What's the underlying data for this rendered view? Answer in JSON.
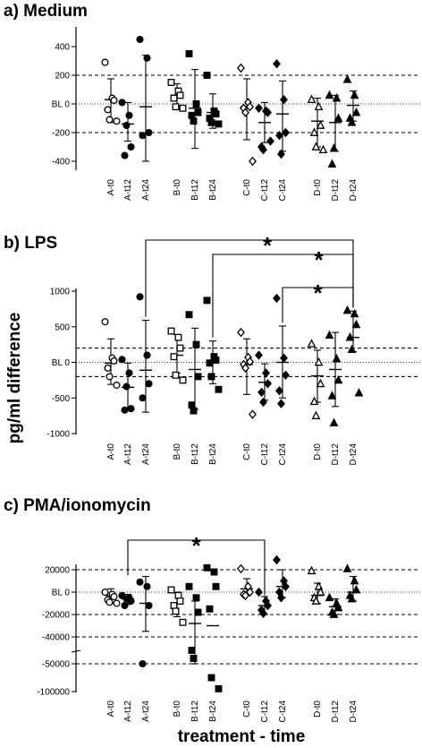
{
  "figure": {
    "y_axis_label": "pg/ml difference",
    "x_axis_label": "treatment - time"
  },
  "chart_data": [
    {
      "type": "scatter",
      "title": "a) Medium",
      "categories": [
        "A-t0",
        "A-t12",
        "A-t24",
        "B-t0",
        "B-t12",
        "B-t24",
        "C-t0",
        "C-t12",
        "C-t24",
        "D-t0",
        "D-t12",
        "D-t24"
      ],
      "yticks": [
        {
          "value": 400,
          "label": "400"
        },
        {
          "value": 200,
          "label": "200"
        },
        {
          "value": 0,
          "label": "BL 0"
        },
        {
          "value": -200,
          "label": "-200"
        },
        {
          "value": -400,
          "label": "-400"
        }
      ],
      "ylim": [
        -500,
        460
      ],
      "reference_lines": {
        "dashed": [
          200,
          -200
        ],
        "dotted": [
          0
        ]
      },
      "groups": [
        {
          "category": "A-t0",
          "marker": "circle-open",
          "mean": 30,
          "ci": [
            -130,
            175
          ],
          "points": [
            290,
            40,
            25,
            -40,
            -110,
            -120
          ]
        },
        {
          "category": "A-t12",
          "marker": "circle-filled",
          "mean": -140,
          "ci": [
            -260,
            10
          ],
          "points": [
            10,
            -80,
            -300,
            -360,
            -150
          ]
        },
        {
          "category": "A-t24",
          "marker": "circle-filled",
          "mean": -20,
          "ci": [
            -400,
            340
          ],
          "points": [
            450,
            320,
            -200,
            -220
          ]
        },
        {
          "category": "B-t0",
          "marker": "square-open",
          "mean": 60,
          "ci": [
            -20,
            140
          ],
          "points": [
            150,
            90,
            60,
            40,
            -20,
            -30
          ]
        },
        {
          "category": "B-t12",
          "marker": "square-filled",
          "mean": -30,
          "ci": [
            -310,
            240
          ],
          "points": [
            350,
            0,
            -60,
            -80,
            -120
          ]
        },
        {
          "category": "B-t24",
          "marker": "square-filled",
          "mean": -60,
          "ci": [
            -170,
            70
          ],
          "points": [
            200,
            -50,
            -70,
            -100,
            -130,
            -140
          ]
        },
        {
          "category": "C-t0",
          "marker": "diamond-open",
          "mean": -20,
          "ci": [
            -250,
            175
          ],
          "points": [
            250,
            10,
            -20,
            -30,
            -60,
            -400
          ]
        },
        {
          "category": "C-t12",
          "marker": "diamond-filled",
          "mean": -130,
          "ci": [
            -270,
            10
          ],
          "points": [
            -30,
            -50,
            -60,
            -300,
            -320,
            -260
          ]
        },
        {
          "category": "C-t24",
          "marker": "diamond-filled",
          "mean": -70,
          "ci": [
            -330,
            160
          ],
          "points": [
            280,
            30,
            -200,
            -220,
            -350
          ]
        },
        {
          "category": "D-t0",
          "marker": "triangle-open",
          "mean": -120,
          "ci": [
            -300,
            40
          ],
          "points": [
            30,
            -20,
            -150,
            -200,
            -300,
            -320
          ]
        },
        {
          "category": "D-t12",
          "marker": "triangle-filled",
          "mean": -130,
          "ci": [
            -330,
            60
          ],
          "points": [
            60,
            40,
            -100,
            -420,
            -310
          ]
        },
        {
          "category": "D-t24",
          "marker": "triangle-filled",
          "mean": -10,
          "ci": [
            -120,
            90
          ],
          "points": [
            170,
            60,
            -60,
            -100,
            -130
          ]
        }
      ],
      "significance": []
    },
    {
      "type": "scatter",
      "title": "b) LPS",
      "categories": [
        "A-t0",
        "A-t12",
        "A-t24",
        "B-t0",
        "B-t12",
        "B-t24",
        "C-t0",
        "C-t12",
        "C-t24",
        "D-t0",
        "D-t12",
        "D-t24"
      ],
      "yticks": [
        {
          "value": 1000,
          "label": "1000"
        },
        {
          "value": 500,
          "label": "500"
        },
        {
          "value": 0,
          "label": "BL 0"
        },
        {
          "value": -500,
          "label": "-500"
        },
        {
          "value": -1000,
          "label": "-1000"
        }
      ],
      "ylim": [
        -1000,
        1020
      ],
      "reference_lines": {
        "dashed": [
          200,
          -200
        ],
        "dotted": [
          0
        ]
      },
      "groups": [
        {
          "category": "A-t0",
          "marker": "circle-open",
          "mean": -10,
          "ci": [
            -310,
            330
          ],
          "points": [
            570,
            60,
            20,
            -80,
            -200,
            -320
          ]
        },
        {
          "category": "A-t12",
          "marker": "circle-filled",
          "mean": -350,
          "ci": [
            -660,
            -10
          ],
          "points": [
            40,
            -150,
            -650,
            -670,
            -340
          ]
        },
        {
          "category": "A-t24",
          "marker": "circle-filled",
          "mean": -110,
          "ci": [
            -700,
            590
          ],
          "points": [
            920,
            100,
            -300,
            -500
          ]
        },
        {
          "category": "B-t0",
          "marker": "square-open",
          "mean": 100,
          "ci": [
            -150,
            390
          ],
          "points": [
            440,
            350,
            200,
            80,
            -180,
            -250
          ]
        },
        {
          "category": "B-t12",
          "marker": "square-filled",
          "mean": -100,
          "ci": [
            -660,
            480
          ],
          "points": [
            670,
            250,
            -200,
            -600,
            -680
          ]
        },
        {
          "category": "B-t24",
          "marker": "square-filled",
          "mean": 20,
          "ci": [
            -300,
            300
          ],
          "points": [
            870,
            80,
            30,
            -10,
            -200,
            -380
          ]
        },
        {
          "category": "C-t0",
          "marker": "diamond-open",
          "mean": -30,
          "ci": [
            -450,
            330
          ],
          "points": [
            420,
            70,
            10,
            -30,
            -80,
            -730
          ]
        },
        {
          "category": "C-t12",
          "marker": "diamond-filled",
          "mean": -280,
          "ci": [
            -530,
            -20
          ],
          "points": [
            100,
            -150,
            -300,
            -420,
            -560
          ]
        },
        {
          "category": "C-t24",
          "marker": "diamond-filled",
          "mean": 0,
          "ci": [
            -500,
            510
          ],
          "points": [
            900,
            60,
            -180,
            -400,
            -580
          ]
        },
        {
          "category": "D-t0",
          "marker": "triangle-open",
          "mean": -190,
          "ci": [
            -560,
            170
          ],
          "points": [
            260,
            0,
            -300,
            -550,
            -750
          ]
        },
        {
          "category": "D-t12",
          "marker": "triangle-filled",
          "mean": -100,
          "ci": [
            -620,
            420
          ],
          "points": [
            380,
            50,
            -250,
            -470,
            -850
          ]
        },
        {
          "category": "D-t24",
          "marker": "triangle-filled",
          "mean": 350,
          "ci": [
            150,
            720
          ],
          "points": [
            730,
            680,
            530,
            350,
            180,
            -430
          ]
        }
      ],
      "significance": [
        {
          "from": "A-t24",
          "to": "D-t24",
          "label": "*"
        },
        {
          "from": "B-t24",
          "to": "D-t24",
          "label": "*"
        },
        {
          "from": "C-t24",
          "to": "D-t24",
          "label": "*"
        }
      ]
    },
    {
      "type": "scatter",
      "title": "c) PMA/ionomycin",
      "categories": [
        "A-t0",
        "A-t12",
        "A-t24",
        "B-t0",
        "B-t12",
        "B-t24",
        "C-t0",
        "C-t12",
        "C-t24",
        "D-t0",
        "D-t12",
        "D-t24"
      ],
      "yticks": [
        {
          "value": 20000,
          "label": "20000"
        },
        {
          "value": 0,
          "label": "BL 0"
        },
        {
          "value": -20000,
          "label": "-20000"
        },
        {
          "value": -40000,
          "label": "-40000"
        },
        {
          "value": -50000,
          "label": "-50000"
        },
        {
          "value": -100000,
          "label": "-100000"
        }
      ],
      "axis_break": true,
      "reference_lines": {
        "dashed": [
          20000,
          -20000,
          -40000,
          -50000
        ],
        "dotted": [
          0
        ]
      },
      "groups": [
        {
          "category": "A-t0",
          "marker": "circle-open",
          "mean": -3000,
          "ci": [
            -10000,
            3000
          ],
          "points": [
            0,
            -2000,
            -4000,
            -7000,
            -9000,
            -10000
          ]
        },
        {
          "category": "A-t12",
          "marker": "circle-filled",
          "mean": -6000,
          "ci": [
            -11000,
            -2000
          ],
          "points": [
            -3000,
            -5000,
            -8000,
            -12000,
            -6000
          ]
        },
        {
          "category": "A-t24",
          "marker": "circle-filled",
          "mean": -10000,
          "ci": [
            -35000,
            14000
          ],
          "points": [
            9000,
            5000,
            -12000,
            -50000
          ]
        },
        {
          "category": "B-t0",
          "marker": "square-open",
          "mean": -10000,
          "ci": [
            -22000,
            0
          ],
          "points": [
            2000,
            -3000,
            -8000,
            -12000,
            -17000,
            -27000
          ]
        },
        {
          "category": "B-t12",
          "marker": "square-filled",
          "mean": -28000,
          "ci": [
            -50000,
            -8000
          ],
          "points": [
            5000,
            -5000,
            -18000,
            -45000,
            -48000
          ]
        },
        {
          "category": "B-t24",
          "marker": "square-filled",
          "mean": -30000,
          "ci": null,
          "points": [
            22000,
            18000,
            5000,
            -15000,
            -75000,
            -95000
          ]
        },
        {
          "category": "C-t0",
          "marker": "diamond-open",
          "mean": 3000,
          "ci": [
            -3000,
            12000
          ],
          "points": [
            21000,
            5000,
            0,
            -2000,
            -3000
          ]
        },
        {
          "category": "C-t12",
          "marker": "diamond-filled",
          "mean": -12000,
          "ci": [
            -20000,
            -4000
          ],
          "points": [
            0,
            -8000,
            -12000,
            -16000,
            -19000
          ]
        },
        {
          "category": "C-t24",
          "marker": "diamond-filled",
          "mean": 5000,
          "ci": [
            -5000,
            20000
          ],
          "points": [
            30000,
            10000,
            5000,
            0,
            -5000
          ]
        },
        {
          "category": "D-t0",
          "marker": "triangle-open",
          "mean": -3000,
          "ci": [
            -10000,
            8000
          ],
          "points": [
            19000,
            5000,
            0,
            -5000,
            -8000
          ]
        },
        {
          "category": "D-t12",
          "marker": "triangle-filled",
          "mean": -13000,
          "ci": [
            -20000,
            -6000
          ],
          "points": [
            -5000,
            -10000,
            -14000,
            -18000,
            -20000
          ]
        },
        {
          "category": "D-t24",
          "marker": "triangle-filled",
          "mean": 0,
          "ci": [
            -8000,
            14000
          ],
          "points": [
            21000,
            10000,
            2000,
            -3000,
            -6000
          ]
        }
      ],
      "significance": [
        {
          "from": "A-t12",
          "to": "C-t12",
          "label": "*"
        }
      ]
    }
  ]
}
